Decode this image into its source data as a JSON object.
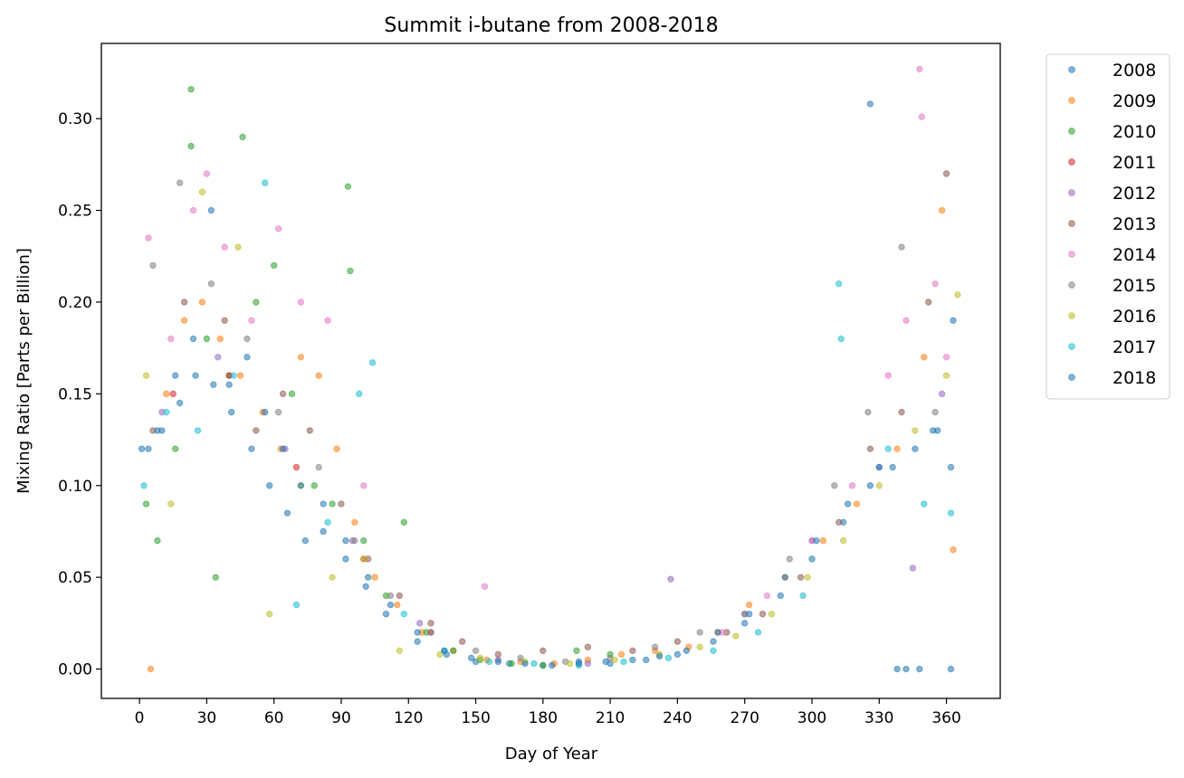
{
  "chart_data": {
    "type": "scatter",
    "title": "Summit i-butane from 2008-2018",
    "xlabel": "Day of Year",
    "ylabel": "Mixing Ratio [Parts per Billion]",
    "xlim": [
      -17,
      384
    ],
    "ylim": [
      -0.016,
      0.341
    ],
    "xticks": [
      0,
      30,
      60,
      90,
      120,
      150,
      180,
      210,
      240,
      270,
      300,
      330,
      360
    ],
    "yticks": [
      0.0,
      0.05,
      0.1,
      0.15,
      0.2,
      0.25,
      0.3
    ],
    "ytick_labels": [
      "0.00",
      "0.05",
      "0.10",
      "0.15",
      "0.20",
      "0.25",
      "0.30"
    ],
    "grid": false,
    "legend_position": "outside-upper-right",
    "marker_alpha": 0.55,
    "series": [
      {
        "name": "2008",
        "color": "#1f77b4",
        "x": [
          4,
          10,
          18,
          25,
          33,
          41,
          50,
          58,
          66,
          74,
          82,
          92,
          101,
          110,
          124,
          137,
          150,
          165,
          180,
          196,
          210,
          226,
          240,
          256,
          270,
          286,
          300,
          314,
          326,
          336,
          346,
          354,
          362
        ],
        "y": [
          0.12,
          0.13,
          0.145,
          0.16,
          0.155,
          0.14,
          0.12,
          0.1,
          0.085,
          0.07,
          0.075,
          0.06,
          0.045,
          0.03,
          0.015,
          0.008,
          0.004,
          0.003,
          0.002,
          0.004,
          0.003,
          0.005,
          0.008,
          0.015,
          0.025,
          0.04,
          0.06,
          0.08,
          0.1,
          0.11,
          0.12,
          0.13,
          0.11
        ]
      },
      {
        "name": "2009",
        "color": "#ff7f0e",
        "x": [
          5,
          12,
          20,
          28,
          36,
          45,
          55,
          63,
          72,
          80,
          88,
          96,
          105,
          115,
          126,
          140,
          155,
          170,
          185,
          200,
          215,
          230,
          245,
          258,
          272,
          288,
          305,
          320,
          338,
          350,
          358,
          363
        ],
        "y": [
          0.0,
          0.15,
          0.19,
          0.2,
          0.18,
          0.16,
          0.14,
          0.12,
          0.17,
          0.16,
          0.12,
          0.08,
          0.05,
          0.035,
          0.02,
          0.01,
          0.005,
          0.004,
          0.003,
          0.005,
          0.008,
          0.01,
          0.012,
          0.02,
          0.035,
          0.05,
          0.07,
          0.09,
          0.12,
          0.17,
          0.25,
          0.065
        ]
      },
      {
        "name": "2010",
        "color": "#2ca02c",
        "x": [
          3,
          8,
          16,
          23,
          23,
          30,
          34,
          40,
          46,
          52,
          60,
          68,
          78,
          86,
          93,
          94,
          100,
          110,
          118,
          128,
          140,
          152,
          166,
          180,
          195,
          210
        ],
        "y": [
          0.09,
          0.07,
          0.12,
          0.316,
          0.285,
          0.18,
          0.05,
          0.16,
          0.29,
          0.2,
          0.22,
          0.15,
          0.1,
          0.09,
          0.263,
          0.217,
          0.07,
          0.04,
          0.08,
          0.02,
          0.01,
          0.005,
          0.003,
          0.002,
          0.01,
          0.008
        ]
      },
      {
        "name": "2011",
        "color": "#d62728",
        "x": [
          15,
          40,
          70,
          100,
          130
        ],
        "y": [
          0.15,
          0.16,
          0.11,
          0.06,
          0.02
        ]
      },
      {
        "name": "2012",
        "color": "#9467bd",
        "x": [
          10,
          35,
          65,
          95,
          125,
          160,
          200,
          237,
          270,
          300,
          330,
          345,
          358
        ],
        "y": [
          0.14,
          0.17,
          0.12,
          0.07,
          0.025,
          0.005,
          0.003,
          0.049,
          0.03,
          0.07,
          0.11,
          0.055,
          0.15
        ]
      },
      {
        "name": "2013",
        "color": "#8c564b",
        "x": [
          6,
          20,
          38,
          52,
          64,
          76,
          90,
          102,
          116,
          130,
          144,
          160,
          180,
          200,
          220,
          240,
          262,
          278,
          295,
          312,
          326,
          340,
          352,
          360
        ],
        "y": [
          0.13,
          0.2,
          0.19,
          0.13,
          0.15,
          0.13,
          0.09,
          0.06,
          0.04,
          0.025,
          0.015,
          0.008,
          0.01,
          0.012,
          0.01,
          0.015,
          0.02,
          0.03,
          0.05,
          0.08,
          0.12,
          0.14,
          0.2,
          0.27
        ]
      },
      {
        "name": "2014",
        "color": "#e377c2",
        "x": [
          4,
          14,
          24,
          30,
          38,
          50,
          62,
          72,
          84,
          100,
          154,
          260,
          280,
          300,
          318,
          334,
          342,
          348,
          349,
          355,
          360
        ],
        "y": [
          0.235,
          0.18,
          0.25,
          0.27,
          0.23,
          0.19,
          0.24,
          0.2,
          0.19,
          0.1,
          0.045,
          0.02,
          0.04,
          0.07,
          0.1,
          0.16,
          0.19,
          0.327,
          0.301,
          0.21,
          0.17
        ]
      },
      {
        "name": "2015",
        "color": "#7f7f7f",
        "x": [
          6,
          18,
          32,
          48,
          62,
          80,
          96,
          112,
          130,
          150,
          170,
          190,
          210,
          230,
          250,
          270,
          290,
          310,
          325,
          340,
          355
        ],
        "y": [
          0.22,
          0.265,
          0.21,
          0.18,
          0.14,
          0.11,
          0.07,
          0.04,
          0.02,
          0.01,
          0.006,
          0.004,
          0.006,
          0.012,
          0.02,
          0.03,
          0.06,
          0.1,
          0.14,
          0.23,
          0.14
        ]
      },
      {
        "name": "2016",
        "color": "#bcbd22",
        "x": [
          3,
          14,
          28,
          44,
          58,
          72,
          86,
          100,
          116,
          134,
          152,
          172,
          192,
          212,
          232,
          250,
          266,
          282,
          298,
          314,
          330,
          346,
          360,
          365
        ],
        "y": [
          0.16,
          0.09,
          0.26,
          0.23,
          0.03,
          0.1,
          0.05,
          0.06,
          0.01,
          0.008,
          0.006,
          0.004,
          0.003,
          0.005,
          0.008,
          0.012,
          0.018,
          0.03,
          0.05,
          0.07,
          0.1,
          0.13,
          0.16,
          0.204
        ]
      },
      {
        "name": "2017",
        "color": "#17becf",
        "x": [
          2,
          12,
          26,
          42,
          56,
          70,
          84,
          98,
          104,
          118,
          136,
          156,
          176,
          196,
          216,
          236,
          256,
          276,
          296,
          312,
          313,
          334,
          350,
          362
        ],
        "y": [
          0.1,
          0.14,
          0.13,
          0.16,
          0.265,
          0.035,
          0.08,
          0.15,
          0.167,
          0.03,
          0.01,
          0.004,
          0.003,
          0.002,
          0.004,
          0.006,
          0.01,
          0.02,
          0.04,
          0.21,
          0.18,
          0.12,
          0.09,
          0.085
        ]
      },
      {
        "name": "2018",
        "color": "#1f77b4",
        "x": [
          1,
          8,
          16,
          24,
          32,
          40,
          48,
          56,
          64,
          72,
          82,
          92,
          102,
          112,
          124,
          136,
          148,
          160,
          172,
          184,
          196,
          208,
          220,
          232,
          244,
          258,
          272,
          288,
          302,
          316,
          326,
          330,
          338,
          342,
          348,
          356,
          362,
          363
        ],
        "y": [
          0.12,
          0.13,
          0.16,
          0.18,
          0.25,
          0.155,
          0.17,
          0.14,
          0.12,
          0.1,
          0.09,
          0.07,
          0.05,
          0.035,
          0.02,
          0.01,
          0.006,
          0.004,
          0.003,
          0.002,
          0.003,
          0.004,
          0.005,
          0.007,
          0.01,
          0.02,
          0.03,
          0.05,
          0.07,
          0.09,
          0.308,
          0.11,
          0.0,
          0.0,
          0.0,
          0.13,
          0.0,
          0.19
        ]
      }
    ]
  }
}
